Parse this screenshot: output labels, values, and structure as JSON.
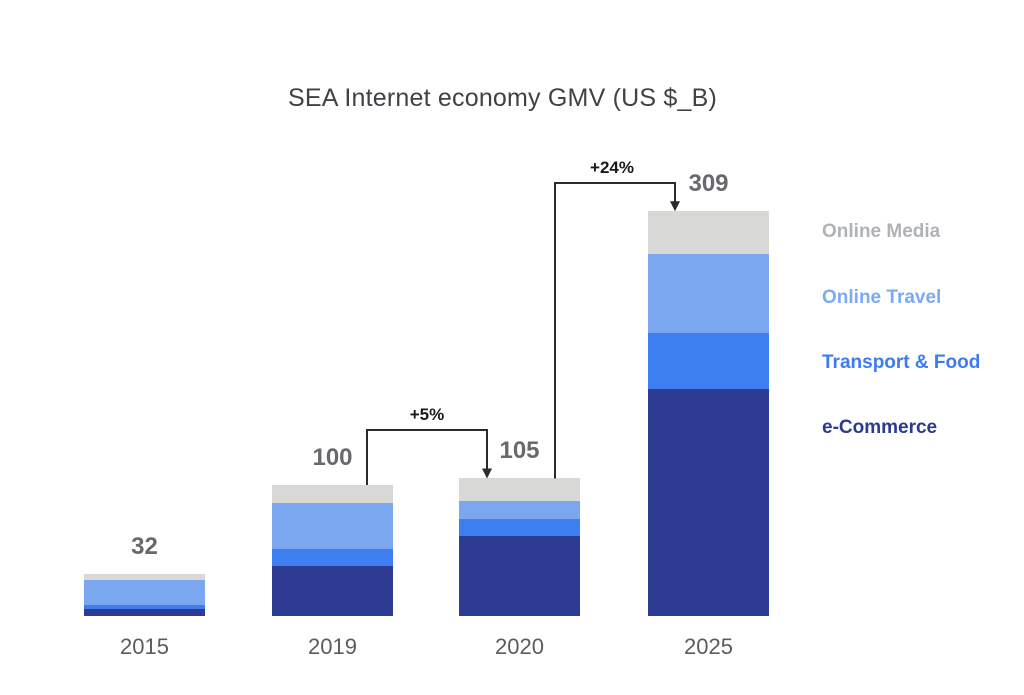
{
  "chart_data": {
    "type": "bar",
    "stacked": true,
    "title": "SEA Internet economy GMV (US $_B)",
    "categories": [
      "2015",
      "2019",
      "2020",
      "2025"
    ],
    "totals": [
      32,
      100,
      105,
      309
    ],
    "stack_order": "bottom-to-top",
    "series": [
      {
        "name": "e-Commerce",
        "color": "#2E3B93",
        "values": [
          5.5,
          38,
          61,
          173
        ]
      },
      {
        "name": "Transport & Food",
        "color": "#3D7FF0",
        "values": [
          3,
          13,
          13,
          43
        ]
      },
      {
        "name": "Online Travel",
        "color": "#7AA7F0",
        "values": [
          19,
          35,
          14,
          60
        ]
      },
      {
        "name": "Online Media",
        "color": "#D8D8D6",
        "values": [
          4.5,
          14,
          17,
          33
        ]
      }
    ],
    "growth": [
      {
        "label": "+5%",
        "from": "2019",
        "to": "2020",
        "from_index": 1,
        "to_index": 2
      },
      {
        "label": "+24%",
        "from": "2020",
        "to": "2025",
        "from_index": 2,
        "to_index": 3
      }
    ],
    "legend": [
      {
        "label": "Online Media",
        "color": "#AFB2B6"
      },
      {
        "label": "Online Travel",
        "color": "#7BAAF7"
      },
      {
        "label": "Transport & Food",
        "color": "#3D7CEE"
      },
      {
        "label": "e-Commerce",
        "color": "#2C3A8F"
      }
    ],
    "legend_position": "right",
    "axes": {
      "x_label": "",
      "y_label": "",
      "y_axis_visible": false,
      "gridlines": false
    },
    "value_label_color": "#67696C",
    "axis_label_color": "#5A5C60",
    "annotation_line_color": "#2B2B2B",
    "background": "#FFFFFF"
  }
}
